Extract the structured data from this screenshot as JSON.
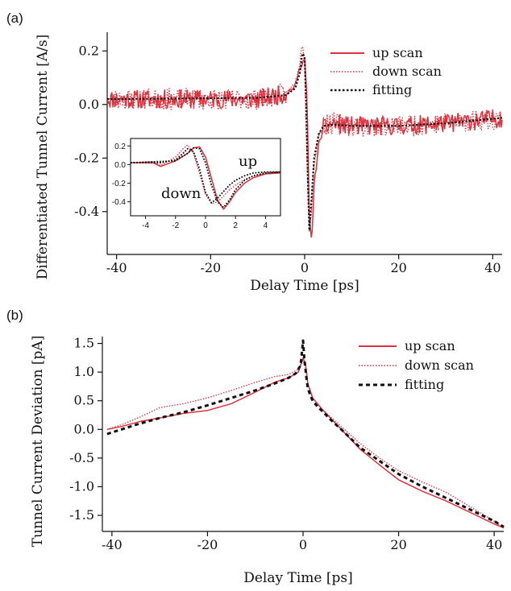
{
  "colors": {
    "up": "#e0303c",
    "down": "#e0303c",
    "fit": "#111111",
    "axis": "#111111"
  },
  "chart_data": [
    {
      "type": "line",
      "panel_label": "(a)",
      "xlabel": "Delay Time [ps]",
      "ylabel": "Differentiated Tunnel Current [A/s]",
      "xlim": [
        -42,
        42
      ],
      "ylim": [
        -0.56,
        0.27
      ],
      "xticks": [
        -40,
        -20,
        0,
        20,
        40
      ],
      "xtick_labels": [
        "-40",
        "-20",
        "0",
        "20",
        "40"
      ],
      "yticks": [
        0.2,
        0.0,
        -0.2,
        -0.4
      ],
      "ytick_labels": [
        "0.2",
        "0.0",
        "-0.2",
        "-0.4"
      ],
      "legend": {
        "position": "top-right",
        "entries": [
          "up scan",
          "down scan",
          "fitting"
        ]
      },
      "series": [
        {
          "name": "up scan",
          "style": "solid",
          "noise": 0.035,
          "seed": 11,
          "x": [
            -42,
            -10,
            -4,
            -2,
            -1,
            0,
            0.5,
            1,
            1.5,
            2,
            3,
            4,
            6,
            10,
            20,
            30,
            42
          ],
          "y": [
            0.02,
            0.02,
            0.04,
            0.07,
            0.14,
            0.17,
            0.02,
            -0.42,
            -0.52,
            -0.3,
            -0.15,
            -0.09,
            -0.07,
            -0.08,
            -0.08,
            -0.07,
            -0.05
          ]
        },
        {
          "name": "down scan",
          "style": "dotted",
          "noise": 0.04,
          "seed": 23,
          "x": [
            -42,
            -10,
            -4,
            -2,
            -1,
            -0.5,
            0,
            0.5,
            1,
            1.5,
            2,
            3,
            4,
            6,
            10,
            20,
            30,
            42
          ],
          "y": [
            0.02,
            0.02,
            0.04,
            0.08,
            0.16,
            0.24,
            0.15,
            -0.2,
            -0.48,
            -0.38,
            -0.22,
            -0.12,
            -0.08,
            -0.07,
            -0.08,
            -0.08,
            -0.07,
            -0.05
          ]
        },
        {
          "name": "fitting",
          "style": "dotted-black",
          "x": [
            -42,
            -10,
            -4,
            -2,
            -1,
            -0.5,
            0,
            0.3,
            0.7,
            1,
            1.5,
            2,
            3,
            4,
            6,
            10,
            20,
            30,
            42
          ],
          "y": [
            0.02,
            0.025,
            0.035,
            0.06,
            0.12,
            0.19,
            0.18,
            0.0,
            -0.3,
            -0.47,
            -0.34,
            -0.2,
            -0.11,
            -0.08,
            -0.075,
            -0.08,
            -0.08,
            -0.07,
            -0.05
          ]
        }
      ],
      "inset": {
        "xlim": [
          -5,
          5
        ],
        "ylim": [
          -0.55,
          0.28
        ],
        "xticks": [
          -4,
          -2,
          0,
          2,
          4
        ],
        "xtick_labels": [
          "-4",
          "-2",
          "0",
          "2",
          "4"
        ],
        "yticks": [
          0.2,
          0.0,
          -0.2,
          -0.4
        ],
        "ytick_labels": [
          "0.2",
          "0.0",
          "-0.2",
          "-0.4"
        ],
        "labels": [
          "up",
          "down"
        ],
        "series": [
          {
            "name": "up scan",
            "style": "solid",
            "x": [
              -5,
              -3.5,
              -3,
              -2,
              -1.2,
              -0.8,
              -0.4,
              0,
              0.4,
              0.8,
              1.2,
              1.6,
              2,
              2.6,
              3.2,
              4,
              5
            ],
            "y": [
              0.02,
              0.02,
              -0.02,
              0.04,
              0.12,
              0.18,
              0.19,
              0.08,
              -0.15,
              -0.38,
              -0.48,
              -0.4,
              -0.3,
              -0.2,
              -0.14,
              -0.1,
              -0.09
            ]
          },
          {
            "name": "down scan",
            "style": "dotted",
            "x": [
              -5,
              -3.5,
              -3,
              -2,
              -1.5,
              -1.2,
              -0.8,
              -0.4,
              0,
              0.4,
              0.8,
              1.2,
              1.6,
              2,
              2.6,
              3.2,
              4,
              5
            ],
            "y": [
              0.02,
              0.03,
              -0.01,
              0.08,
              0.17,
              0.21,
              0.12,
              -0.1,
              -0.32,
              -0.42,
              -0.4,
              -0.34,
              -0.27,
              -0.22,
              -0.16,
              -0.12,
              -0.1,
              -0.09
            ]
          },
          {
            "name": "fitting",
            "style": "dotted-black",
            "x": [
              -5,
              -3,
              -2,
              -1.5,
              -1.2,
              -0.8,
              -0.4,
              0,
              0.4,
              0.8,
              1.2,
              1.6,
              2,
              2.6,
              3.2,
              4,
              5
            ],
            "y": [
              0.02,
              0.02,
              0.05,
              0.12,
              0.17,
              0.14,
              -0.05,
              -0.3,
              -0.41,
              -0.36,
              -0.29,
              -0.22,
              -0.17,
              -0.12,
              -0.09,
              -0.08,
              -0.08
            ]
          },
          {
            "name": "fitting",
            "style": "dotted-black",
            "x": [
              -5,
              -2,
              -1.2,
              -0.8,
              -0.4,
              0,
              0.4,
              0.8,
              1.2,
              1.6,
              2,
              2.6,
              3.2,
              4,
              5
            ],
            "y": [
              0.02,
              0.04,
              0.12,
              0.18,
              0.17,
              0.02,
              -0.22,
              -0.4,
              -0.46,
              -0.38,
              -0.27,
              -0.17,
              -0.12,
              -0.09,
              -0.08
            ]
          }
        ]
      }
    },
    {
      "type": "line",
      "panel_label": "(b)",
      "xlabel": "Delay Time [ps]",
      "ylabel": "Tunnel Current Deviation [pA]",
      "xlim": [
        -42,
        42
      ],
      "ylim": [
        -1.78,
        1.62
      ],
      "xticks": [
        -40,
        -20,
        0,
        20,
        40
      ],
      "xtick_labels": [
        "-40",
        "-20",
        "0",
        "20",
        "40"
      ],
      "yticks": [
        1.5,
        1.0,
        0.5,
        0.0,
        -0.5,
        -1.0,
        -1.5
      ],
      "ytick_labels": [
        "1.5",
        "1.0",
        "0.5",
        "0.0",
        "-0.5",
        "-1.0",
        "-1.5"
      ],
      "legend": {
        "position": "top-right",
        "entries": [
          "up scan",
          "down scan",
          "fitting"
        ]
      },
      "series": [
        {
          "name": "up scan",
          "style": "solid",
          "x": [
            -41,
            -38,
            -34,
            -30,
            -25,
            -20,
            -15,
            -10,
            -6,
            -3,
            -1,
            0,
            0.5,
            1,
            2,
            4,
            8,
            12,
            16,
            20,
            25,
            30,
            35,
            40,
            42
          ],
          "y": [
            0.0,
            0.05,
            0.14,
            0.2,
            0.28,
            0.33,
            0.45,
            0.65,
            0.82,
            0.9,
            1.0,
            1.25,
            1.15,
            0.8,
            0.55,
            0.35,
            0.0,
            -0.35,
            -0.62,
            -0.88,
            -1.08,
            -1.25,
            -1.45,
            -1.65,
            -1.72
          ]
        },
        {
          "name": "down scan",
          "style": "dotted",
          "x": [
            -41,
            -38,
            -34,
            -30,
            -25,
            -20,
            -15,
            -10,
            -6,
            -3,
            -1,
            0,
            0.5,
            1,
            2,
            4,
            8,
            12,
            16,
            20,
            25,
            30,
            35,
            40,
            42
          ],
          "y": [
            0.0,
            0.08,
            0.22,
            0.38,
            0.45,
            0.55,
            0.68,
            0.82,
            0.92,
            0.96,
            1.05,
            1.2,
            1.1,
            0.8,
            0.55,
            0.35,
            0.05,
            -0.25,
            -0.5,
            -0.72,
            -0.92,
            -1.1,
            -1.35,
            -1.6,
            -1.72
          ]
        },
        {
          "name": "fitting",
          "style": "dashed-black",
          "x": [
            -41,
            -35,
            -30,
            -25,
            -20,
            -15,
            -10,
            -6,
            -3,
            -1.5,
            -0.5,
            0,
            0.3,
            0.7,
            1,
            1.5,
            2,
            3,
            4,
            6,
            8,
            12,
            16,
            20,
            25,
            30,
            35,
            40,
            42
          ],
          "y": [
            -0.08,
            0.08,
            0.2,
            0.3,
            0.42,
            0.55,
            0.68,
            0.8,
            0.9,
            0.98,
            1.12,
            1.55,
            1.2,
            0.9,
            0.72,
            0.6,
            0.5,
            0.4,
            0.32,
            0.15,
            0.0,
            -0.32,
            -0.55,
            -0.78,
            -1.0,
            -1.2,
            -1.4,
            -1.6,
            -1.7
          ]
        }
      ]
    }
  ]
}
